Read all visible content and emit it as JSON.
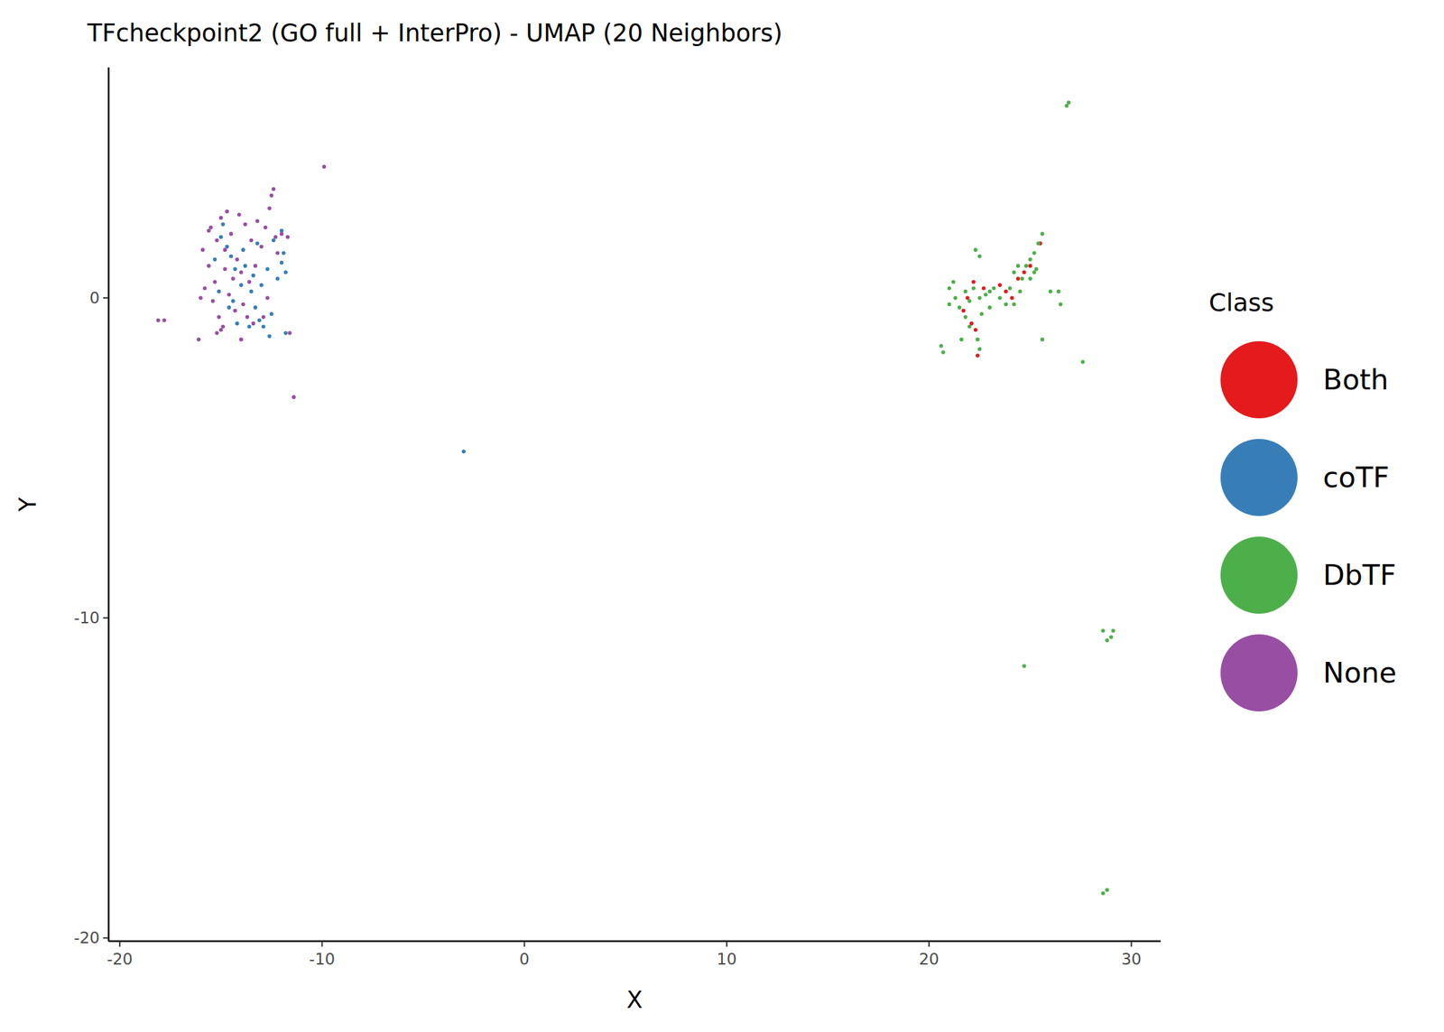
{
  "chart_data": {
    "type": "scatter",
    "title": "TFcheckpoint2 (GO full + InterPro) - UMAP (20 Neighbors)",
    "x_label": "X",
    "y_label": "Y",
    "legend_title": "Class",
    "legend": "right",
    "grid": false,
    "marker": "circle",
    "xlim": [
      -20.55,
      31.45
    ],
    "ylim": [
      -20.1,
      7.2
    ],
    "xticks": [
      -20,
      -10,
      0,
      10,
      20,
      30
    ],
    "yticks": [
      -20,
      -10,
      0
    ],
    "series": [
      {
        "name": "Both",
        "color": "#E41A1C",
        "x": [
          22.1,
          22.3,
          22.4,
          21.7,
          22.7,
          23.5,
          23.8,
          24.1,
          24.4,
          24.7,
          25.0,
          25.5,
          21.9,
          22.2
        ],
        "y": [
          -0.8,
          -1.0,
          -1.8,
          -0.4,
          0.3,
          0.4,
          0.2,
          0.0,
          0.6,
          0.8,
          1.0,
          1.7,
          0.0,
          0.5
        ]
      },
      {
        "name": "coTF",
        "color": "#377EB8",
        "x": [
          -15.0,
          -14.7,
          -14.5,
          -14.3,
          -14.0,
          -13.8,
          -13.5,
          -13.3,
          -13.0,
          -12.7,
          -12.5,
          -12.2,
          -12.0,
          -11.9,
          -11.8,
          -12.0,
          -13.1,
          -13.6,
          -14.2,
          -14.6,
          -15.1,
          -15.3,
          -14.9,
          -13.9,
          -13.2,
          -12.4,
          -12.9,
          -12.6,
          -11.8,
          -3.0,
          -14.4,
          -13.4
        ],
        "y": [
          1.9,
          1.6,
          1.3,
          0.9,
          0.4,
          1.0,
          0.2,
          -0.3,
          0.4,
          0.9,
          -0.5,
          0.6,
          1.1,
          1.4,
          0.8,
          2.1,
          -0.7,
          -0.9,
          -0.8,
          -0.3,
          0.2,
          1.2,
          2.3,
          1.5,
          1.7,
          1.8,
          -0.9,
          -1.2,
          -1.1,
          -4.8,
          -0.1,
          0.7
        ]
      },
      {
        "name": "DbTF",
        "color": "#4DAF4A",
        "x": [
          26.8,
          26.9,
          20.6,
          20.7,
          21.0,
          21.0,
          21.3,
          21.5,
          21.8,
          22.0,
          22.2,
          22.5,
          22.6,
          22.8,
          23.0,
          23.2,
          23.5,
          23.8,
          24.0,
          24.2,
          24.4,
          24.6,
          24.8,
          25.0,
          25.2,
          25.4,
          25.6,
          25.3,
          25.0,
          24.5,
          22.3,
          22.5,
          22.4,
          22.5,
          21.6,
          22.0,
          25.6,
          26.0,
          26.4,
          26.5,
          27.6,
          28.6,
          28.8,
          29.0,
          29.1,
          24.7,
          28.6,
          28.8,
          23.0,
          21.2,
          21.8,
          24.2,
          25.2
        ],
        "y": [
          6.0,
          6.1,
          -1.5,
          -1.7,
          -0.2,
          0.3,
          0.0,
          -0.3,
          0.2,
          -0.1,
          0.3,
          0.0,
          -0.5,
          0.1,
          0.2,
          0.3,
          0.0,
          -0.2,
          0.3,
          0.8,
          1.0,
          0.6,
          1.0,
          1.2,
          1.4,
          1.7,
          2.0,
          0.9,
          0.6,
          0.2,
          1.5,
          1.3,
          -1.3,
          -1.6,
          -1.3,
          -0.9,
          -1.3,
          0.2,
          0.2,
          -0.2,
          -2.0,
          -10.4,
          -10.7,
          -10.6,
          -10.4,
          -11.5,
          -18.6,
          -18.5,
          -0.3,
          0.5,
          -0.6,
          -0.2,
          0.8
        ]
      },
      {
        "name": "None",
        "color": "#984EA3",
        "x": [
          -15.5,
          -15.2,
          -15.0,
          -14.8,
          -14.5,
          -14.2,
          -14.0,
          -15.3,
          -15.6,
          -15.8,
          -15.4,
          -15.1,
          -14.9,
          -14.6,
          -14.3,
          -13.9,
          -13.6,
          -13.3,
          -13.0,
          -12.8,
          -12.6,
          -12.5,
          -12.4,
          -12.3,
          -12.0,
          -11.7,
          -12.2,
          -13.2,
          -13.5,
          -13.8,
          -14.1,
          -14.7,
          -15.0,
          -15.2,
          -14.0,
          -13.4,
          -12.9,
          -16.1,
          -16.0,
          -15.9,
          -15.6,
          -18.1,
          -17.8,
          -9.9,
          -11.4,
          -11.6,
          -14.4,
          -14.8,
          -13.7,
          -12.7
        ],
        "y": [
          2.2,
          1.8,
          2.5,
          1.5,
          2.0,
          1.2,
          0.8,
          0.5,
          1.0,
          0.3,
          -0.1,
          -0.6,
          -0.9,
          0.1,
          -0.4,
          -0.2,
          0.5,
          1.0,
          1.6,
          2.2,
          2.8,
          3.2,
          3.4,
          1.9,
          2.0,
          1.9,
          1.4,
          2.4,
          1.8,
          2.3,
          2.6,
          2.7,
          -1.0,
          -1.1,
          -1.3,
          -0.8,
          -0.6,
          -1.3,
          0.0,
          1.5,
          2.1,
          -0.7,
          -0.7,
          4.1,
          -3.1,
          -1.1,
          0.6,
          0.9,
          -0.6,
          0.0
        ]
      }
    ]
  }
}
